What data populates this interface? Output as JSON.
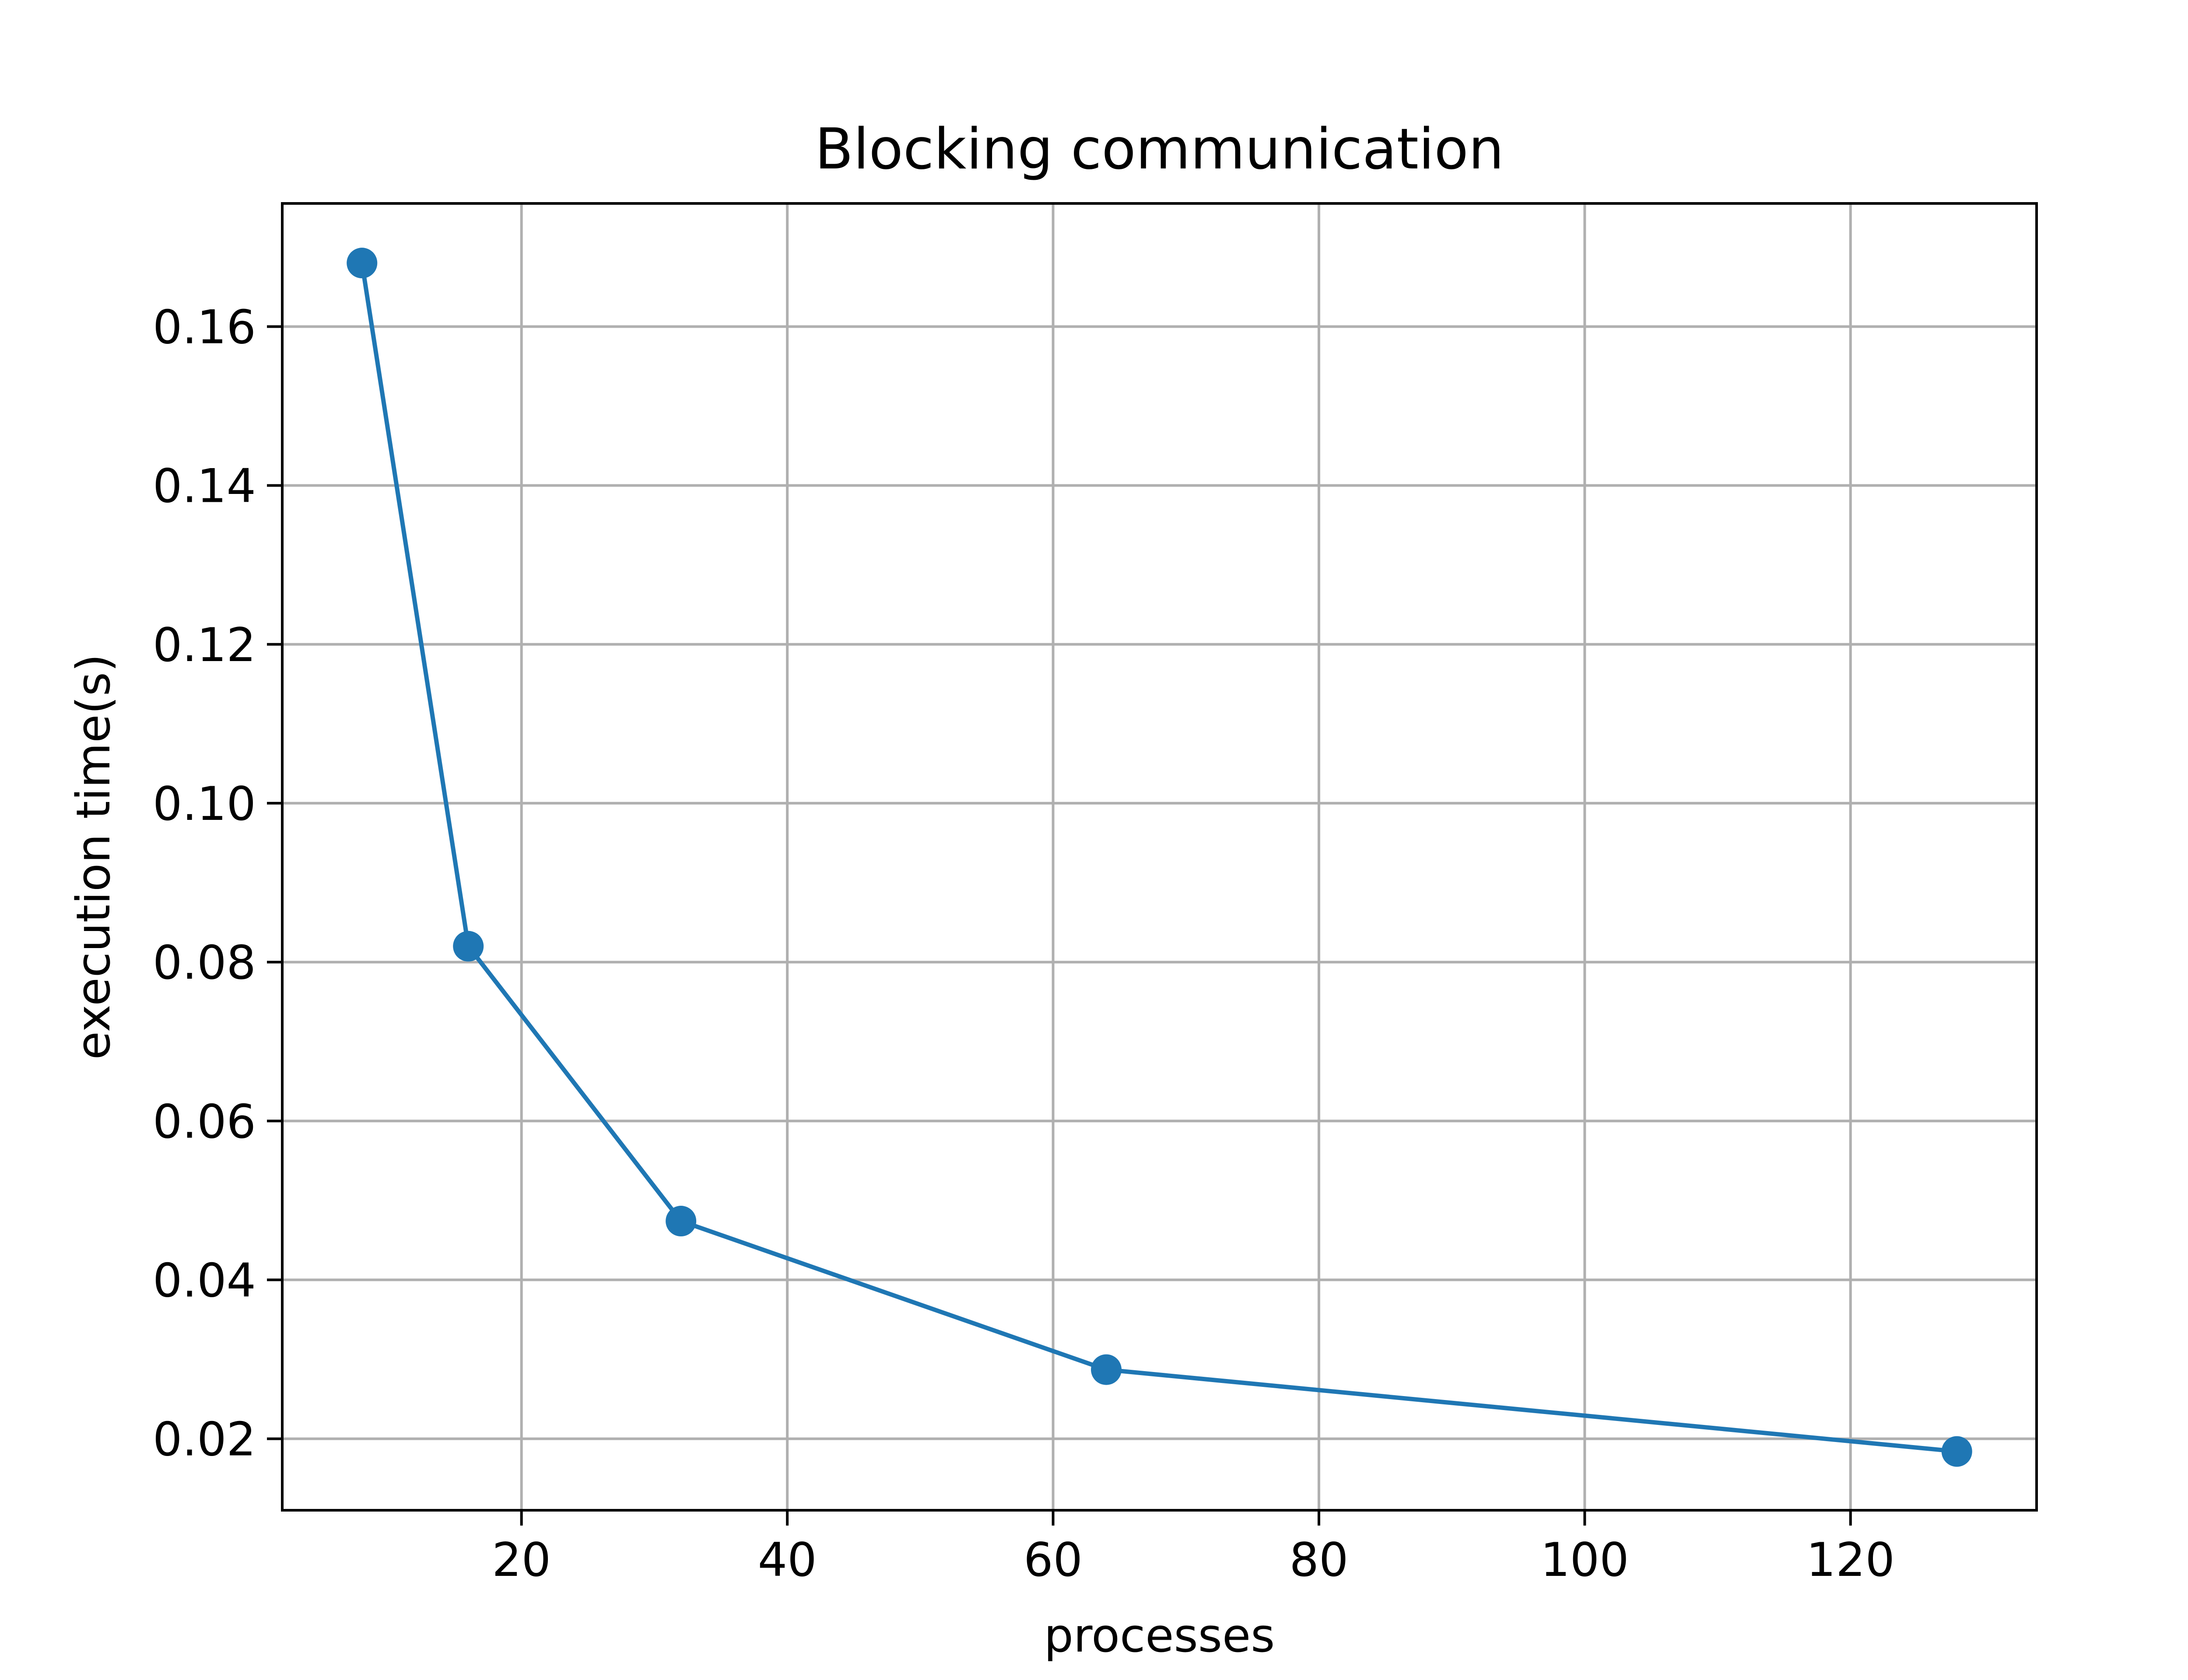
{
  "chart_data": {
    "type": "line",
    "title": "Blocking communication",
    "xlabel": "processes",
    "ylabel": "execution time(s)",
    "xlim": [
      2,
      134
    ],
    "ylim": [
      0.011,
      0.1755
    ],
    "x_ticks": [
      20,
      40,
      60,
      80,
      100,
      120
    ],
    "x_tick_labels": [
      "20",
      "40",
      "60",
      "80",
      "100",
      "120"
    ],
    "y_ticks": [
      0.02,
      0.04,
      0.06,
      0.08,
      0.1,
      0.12,
      0.14,
      0.16
    ],
    "y_tick_labels": [
      "0.02",
      "0.04",
      "0.06",
      "0.08",
      "0.10",
      "0.12",
      "0.14",
      "0.16"
    ],
    "grid": true,
    "series": [
      {
        "color": "#1f77b4",
        "marker": "circle",
        "x": [
          8,
          16,
          32,
          64,
          128
        ],
        "y": [
          0.168,
          0.082,
          0.0474,
          0.0287,
          0.0184
        ]
      }
    ]
  }
}
